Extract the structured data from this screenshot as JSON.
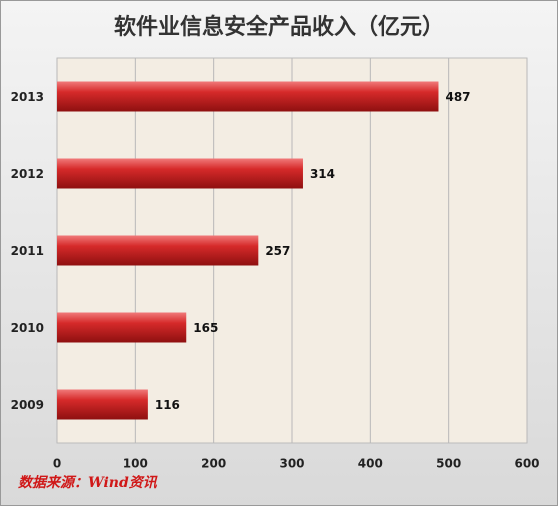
{
  "chart_data": {
    "type": "bar",
    "orientation": "horizontal",
    "title": "软件业信息安全产品收入（亿元）",
    "categories": [
      "2013",
      "2012",
      "2011",
      "2010",
      "2009"
    ],
    "values": [
      487,
      314,
      257,
      165,
      116
    ],
    "color": "#d22a2a",
    "xlim": [
      0,
      600
    ],
    "xticks": [
      0,
      100,
      200,
      300,
      400,
      500,
      600
    ],
    "grid": true,
    "source": "数据来源：Wind资讯"
  }
}
